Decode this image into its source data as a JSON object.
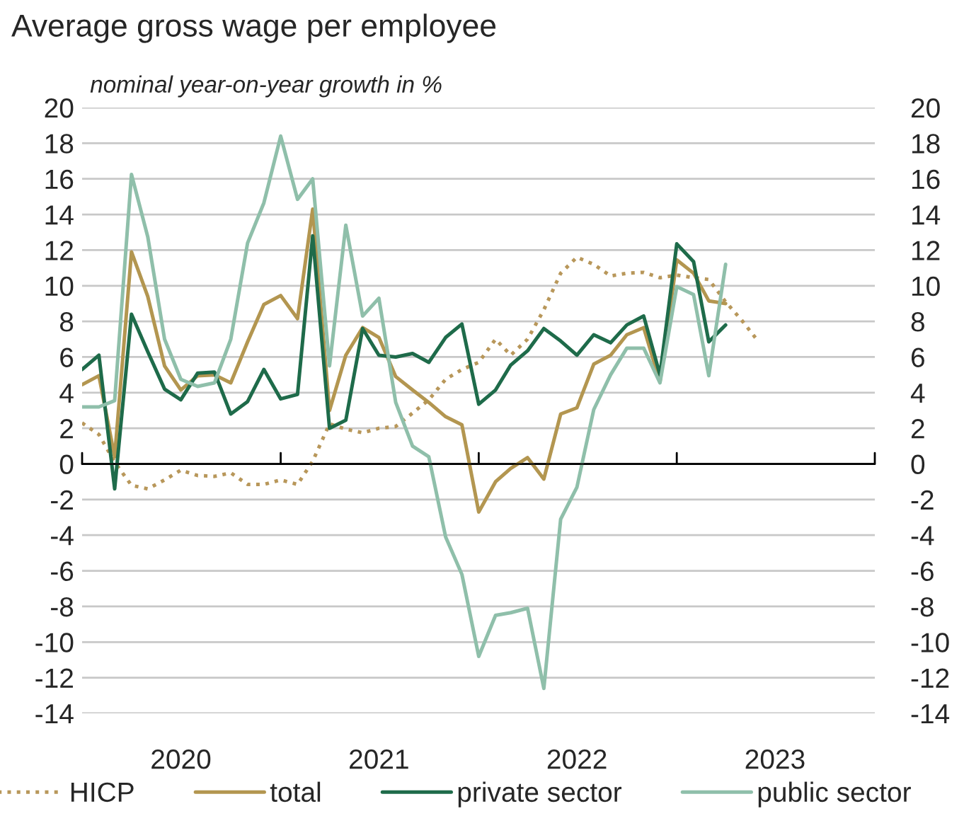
{
  "chart_data": {
    "type": "line",
    "title": "Average gross wage per employee",
    "subtitle": "nominal year-on-year growth in %",
    "x": [
      "2020-01",
      "2020-02",
      "2020-03",
      "2020-04",
      "2020-05",
      "2020-06",
      "2020-07",
      "2020-08",
      "2020-09",
      "2020-10",
      "2020-11",
      "2020-12",
      "2021-01",
      "2021-02",
      "2021-03",
      "2021-04",
      "2021-05",
      "2021-06",
      "2021-07",
      "2021-08",
      "2021-09",
      "2021-10",
      "2021-11",
      "2021-12",
      "2022-01",
      "2022-02",
      "2022-03",
      "2022-04",
      "2022-05",
      "2022-06",
      "2022-07",
      "2022-08",
      "2022-09",
      "2022-10",
      "2022-11",
      "2022-12",
      "2023-01",
      "2023-02",
      "2023-03",
      "2023-04"
    ],
    "series": [
      {
        "name": "HICP",
        "color": "#b8975a",
        "line_style": "dotted",
        "x": [
          "2020-01",
          "2020-02",
          "2020-03",
          "2020-04",
          "2020-05",
          "2020-06",
          "2020-07",
          "2020-08",
          "2020-09",
          "2020-10",
          "2020-11",
          "2020-12",
          "2021-01",
          "2021-02",
          "2021-03",
          "2021-04",
          "2021-05",
          "2021-06",
          "2021-07",
          "2021-08",
          "2021-09",
          "2021-10",
          "2021-11",
          "2021-12",
          "2022-01",
          "2022-02",
          "2022-03",
          "2022-04",
          "2022-05",
          "2022-06",
          "2022-07",
          "2022-08",
          "2022-09",
          "2022-10",
          "2022-11",
          "2022-12",
          "2023-01",
          "2023-02",
          "2023-03",
          "2023-04",
          "2023-05",
          "2023-06"
        ],
        "values": [
          2.3,
          1.65,
          0.1,
          -1.2,
          -1.4,
          -0.9,
          -0.35,
          -0.65,
          -0.7,
          -0.5,
          -1.15,
          -1.15,
          -0.9,
          -1.15,
          0.15,
          2.25,
          1.95,
          1.75,
          2.0,
          2.1,
          2.85,
          3.6,
          4.75,
          5.3,
          5.7,
          7.0,
          6.1,
          7.0,
          8.65,
          10.7,
          11.6,
          11.2,
          10.55,
          10.7,
          10.75,
          10.45,
          10.6,
          10.45,
          10.35,
          9.1,
          8.05,
          6.85
        ]
      },
      {
        "name": "total",
        "color": "#b39650",
        "line_style": "solid",
        "values": [
          4.45,
          4.95,
          0.4,
          11.9,
          9.4,
          5.5,
          4.15,
          4.95,
          5.0,
          4.55,
          6.85,
          8.95,
          9.45,
          8.15,
          14.3,
          3.0,
          6.1,
          7.65,
          7.1,
          4.9,
          4.15,
          3.45,
          2.65,
          2.2,
          -2.7,
          -1.0,
          -0.25,
          0.35,
          -0.85,
          2.8,
          3.15,
          5.6,
          6.1,
          7.25,
          7.65,
          4.6,
          11.45,
          10.7,
          9.15,
          9.0
        ]
      },
      {
        "name": "private sector",
        "color": "#1e6b4a",
        "line_style": "solid",
        "values": [
          5.3,
          6.1,
          -1.4,
          8.4,
          6.3,
          4.2,
          3.6,
          5.1,
          5.15,
          2.8,
          3.5,
          5.3,
          3.65,
          3.9,
          12.8,
          2.0,
          2.45,
          7.6,
          6.1,
          6.0,
          6.2,
          5.7,
          7.1,
          7.85,
          3.35,
          4.15,
          5.55,
          6.35,
          7.6,
          6.9,
          6.1,
          7.25,
          6.8,
          7.8,
          8.3,
          5.0,
          12.35,
          11.35,
          6.85,
          7.8
        ]
      },
      {
        "name": "public sector",
        "color": "#8fbfaa",
        "line_style": "solid",
        "values": [
          3.2,
          3.2,
          3.55,
          16.25,
          12.75,
          7.0,
          4.75,
          4.35,
          4.55,
          7.0,
          12.4,
          14.65,
          18.4,
          14.85,
          16.0,
          5.5,
          13.4,
          8.3,
          9.3,
          3.45,
          1.0,
          0.4,
          -4.1,
          -6.2,
          -10.8,
          -8.5,
          -8.35,
          -8.1,
          -12.6,
          -3.1,
          -1.3,
          3.05,
          5.0,
          6.5,
          6.5,
          4.55,
          9.95,
          9.5,
          4.95,
          11.2
        ]
      }
    ],
    "xlim": [
      "2020-01-01",
      "2024-01-01"
    ],
    "xticks": [
      {
        "value": "2020-01",
        "label": null
      },
      {
        "value": "2020-07",
        "label": "2020"
      },
      {
        "value": "2021-01",
        "label": null
      },
      {
        "value": "2021-07",
        "label": "2021"
      },
      {
        "value": "2022-01",
        "label": null
      },
      {
        "value": "2022-07",
        "label": "2022"
      },
      {
        "value": "2023-01",
        "label": null
      },
      {
        "value": "2023-07",
        "label": "2023"
      },
      {
        "value": "2024-01",
        "label": null
      }
    ],
    "ylim": [
      -14,
      20
    ],
    "yticks": [
      -14,
      -12,
      -10,
      -8,
      -6,
      -4,
      -2,
      0,
      2,
      4,
      6,
      8,
      10,
      12,
      14,
      16,
      18,
      20
    ],
    "y2lim": [
      -14,
      20
    ],
    "y2ticks": [
      -14,
      -12,
      -10,
      -8,
      -6,
      -4,
      -2,
      0,
      2,
      4,
      6,
      8,
      10,
      12,
      14,
      16,
      18,
      20
    ],
    "ref_lines": [
      {
        "axis": "y",
        "value": 0,
        "color": "#000000"
      }
    ],
    "grid": "y",
    "legend": "bottom"
  }
}
